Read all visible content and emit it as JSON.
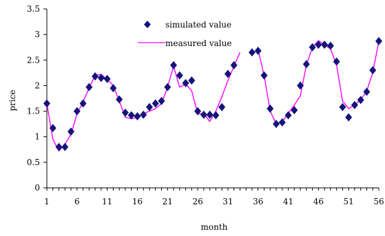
{
  "chart_data": {
    "type": "line",
    "title": "",
    "xlabel": "month",
    "ylabel": "price",
    "xlim": [
      1,
      56
    ],
    "ylim": [
      0,
      3.5
    ],
    "x_ticks": [
      1,
      6,
      11,
      16,
      21,
      26,
      31,
      36,
      41,
      46,
      51,
      56
    ],
    "y_ticks": [
      0,
      0.5,
      1,
      1.5,
      2,
      2.5,
      3,
      3.5
    ],
    "y_tick_labels": [
      "0",
      "0.5",
      "1",
      "1.5",
      "2",
      "2.5",
      "3",
      "3.5"
    ],
    "grid": false,
    "legend_position": "top-center",
    "series": [
      {
        "name": "simulated value",
        "render": "markers",
        "marker": "diamond",
        "color": "#14147a",
        "x": [
          1,
          2,
          3,
          4,
          5,
          6,
          7,
          8,
          9,
          10,
          11,
          12,
          13,
          14,
          15,
          16,
          17,
          18,
          19,
          20,
          21,
          22,
          23,
          24,
          25,
          26,
          27,
          28,
          29,
          30,
          31,
          32,
          35,
          36,
          37,
          38,
          39,
          40,
          41,
          42,
          43,
          44,
          45,
          46,
          47,
          48,
          49,
          50,
          51,
          52,
          53,
          54,
          55,
          56
        ],
        "y": [
          1.65,
          1.17,
          0.8,
          0.8,
          1.1,
          1.5,
          1.65,
          1.97,
          2.18,
          2.15,
          2.13,
          1.95,
          1.73,
          1.47,
          1.42,
          1.4,
          1.43,
          1.58,
          1.65,
          1.7,
          1.97,
          2.4,
          2.2,
          2.05,
          2.1,
          1.5,
          1.43,
          1.43,
          1.42,
          1.58,
          2.23,
          2.4,
          2.65,
          2.68,
          2.2,
          1.55,
          1.25,
          1.28,
          1.42,
          1.52,
          2.0,
          2.42,
          2.75,
          2.8,
          2.8,
          2.78,
          2.47,
          1.58,
          1.38,
          1.62,
          1.72,
          1.88,
          2.3,
          2.87
        ]
      },
      {
        "name": "measured value",
        "render": "line",
        "color": "#ff00ff",
        "x": [
          1,
          2,
          3,
          4,
          5,
          6,
          7,
          8,
          9,
          10,
          11,
          12,
          13,
          14,
          15,
          16,
          17,
          18,
          19,
          20,
          21,
          22,
          23,
          24,
          25,
          26,
          27,
          28,
          29,
          30,
          31,
          32,
          33
        ],
        "y": [
          1.65,
          0.95,
          0.72,
          0.85,
          1.05,
          1.45,
          1.68,
          1.95,
          2.2,
          2.22,
          2.12,
          2.0,
          1.7,
          1.38,
          1.35,
          1.38,
          1.45,
          1.5,
          1.55,
          1.65,
          1.97,
          2.38,
          1.97,
          2.03,
          1.9,
          1.45,
          1.45,
          1.3,
          1.5,
          1.78,
          2.1,
          2.38,
          2.65
        ]
      },
      {
        "name": "measured value",
        "render": "line",
        "color": "#ff00ff",
        "legend": false,
        "x": [
          36,
          37,
          38,
          39,
          40,
          41,
          42,
          43,
          44,
          45,
          46,
          47,
          48,
          49,
          50,
          51,
          52,
          53,
          54,
          55,
          56
        ],
        "y": [
          2.7,
          2.2,
          1.5,
          1.25,
          1.3,
          1.45,
          1.62,
          1.8,
          2.4,
          2.75,
          2.88,
          2.8,
          2.72,
          2.4,
          1.7,
          1.55,
          1.62,
          1.72,
          1.9,
          2.25,
          2.87
        ]
      }
    ]
  }
}
